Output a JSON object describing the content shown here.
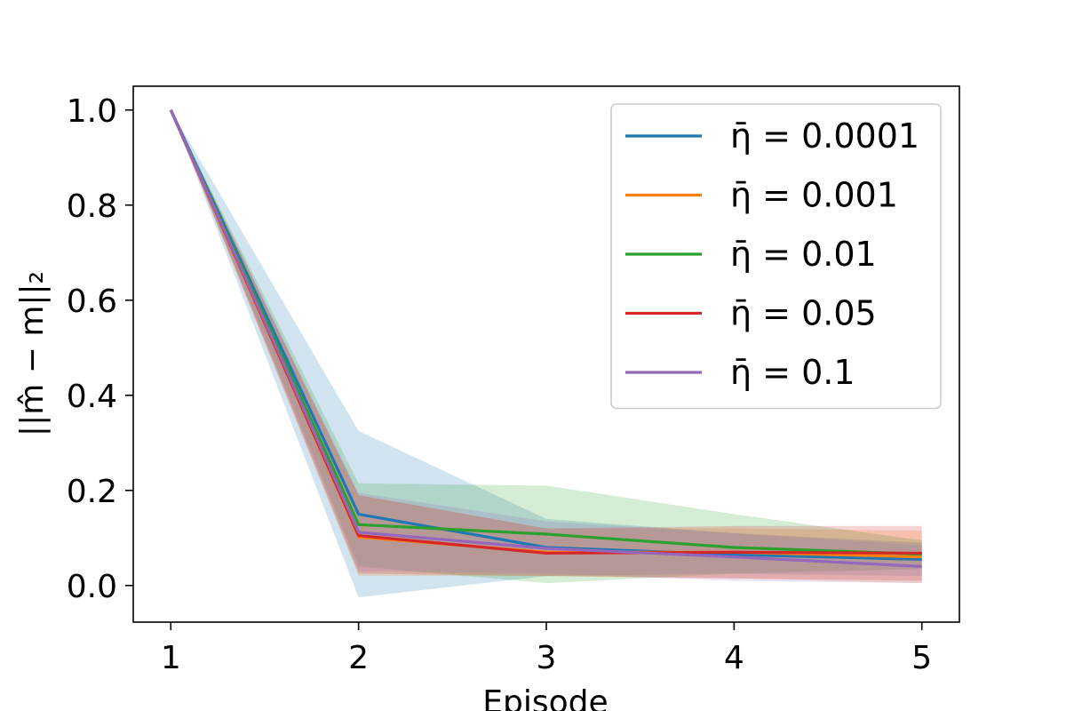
{
  "chart_data": {
    "type": "line",
    "title": "",
    "xlabel": "Episode",
    "ylabel": "||m̂ − m||₂",
    "x": [
      1,
      2,
      3,
      4,
      5
    ],
    "xlim": [
      0.8,
      5.2
    ],
    "ylim": [
      -0.077,
      1.05
    ],
    "xticks": [
      "1",
      "2",
      "3",
      "4",
      "5"
    ],
    "yticks": [
      "0.0",
      "0.2",
      "0.4",
      "0.6",
      "0.8",
      "1.0"
    ],
    "ytick_values": [
      0.0,
      0.2,
      0.4,
      0.6,
      0.8,
      1.0
    ],
    "grid": false,
    "legend_position": "top-right",
    "series": [
      {
        "name": "η̄ = 0.0001",
        "color": "#1f77b4",
        "values": [
          1.0,
          0.15,
          0.08,
          0.065,
          0.055
        ],
        "lower": [
          1.0,
          -0.025,
          0.02,
          0.025,
          0.02
        ],
        "upper": [
          1.0,
          0.325,
          0.14,
          0.11,
          0.09
        ]
      },
      {
        "name": "η̄ = 0.001",
        "color": "#ff7f0e",
        "values": [
          1.0,
          0.102,
          0.07,
          0.07,
          0.06
        ],
        "lower": [
          1.0,
          0.02,
          0.02,
          0.015,
          0.005
        ],
        "upper": [
          1.0,
          0.19,
          0.12,
          0.12,
          0.115
        ]
      },
      {
        "name": "η̄ = 0.01",
        "color": "#2ca02c",
        "values": [
          1.0,
          0.128,
          0.108,
          0.08,
          0.066
        ],
        "lower": [
          1.0,
          0.04,
          0.005,
          0.025,
          0.035
        ],
        "upper": [
          1.0,
          0.215,
          0.21,
          0.15,
          0.095
        ]
      },
      {
        "name": "η̄ = 0.05",
        "color": "#d62728",
        "values": [
          1.0,
          0.105,
          0.068,
          0.07,
          0.068
        ],
        "lower": [
          1.0,
          0.025,
          0.02,
          0.015,
          0.01
        ],
        "upper": [
          1.0,
          0.19,
          0.12,
          0.125,
          0.125
        ]
      },
      {
        "name": "η̄ = 0.1",
        "color": "#9467bd",
        "values": [
          1.0,
          0.112,
          0.078,
          0.06,
          0.04
        ],
        "lower": [
          1.0,
          0.03,
          0.025,
          0.01,
          0.005
        ],
        "upper": [
          1.0,
          0.195,
          0.135,
          0.11,
          0.085
        ]
      }
    ]
  }
}
